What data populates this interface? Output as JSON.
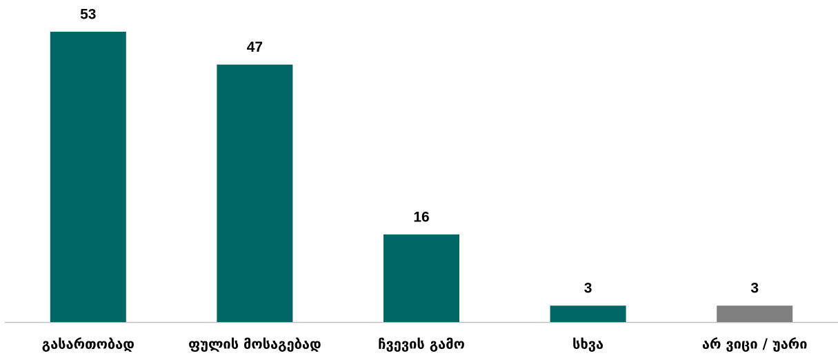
{
  "chart_data": {
    "type": "bar",
    "categories": [
      "გასართობად",
      "ფულის მოსაგებად",
      "ჩვევის გამო",
      "სხვა",
      "არ ვიცი / უარი"
    ],
    "values": [
      53,
      47,
      16,
      3,
      3
    ],
    "colors": [
      "#006666",
      "#006666",
      "#006666",
      "#006666",
      "#808080"
    ]
  }
}
